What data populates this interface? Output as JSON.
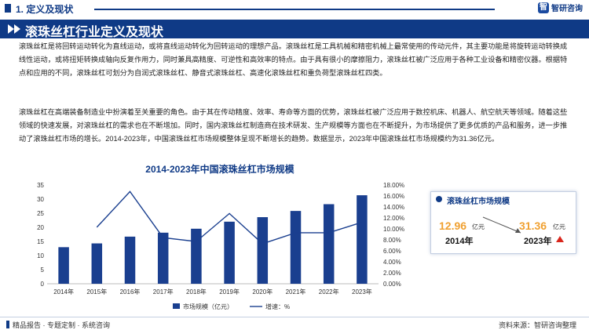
{
  "header": {
    "section_title": "1. 定义及现状",
    "brand": "智研咨询",
    "band_title": "滚珠丝杠行业定义及现状"
  },
  "paragraphs": {
    "p1": "滚珠丝杠是将回转运动转化为直线运动，或将直线运动转化为回转运动的理想产品。滚珠丝杠是工具机械和精密机械上最常使用的传动元件，其主要功能是将旋转运动转换成线性运动，或将扭矩转换成轴向反复作用力，同时兼具高精度、可逆性和高效率的特点。由于具有很小的摩擦阻力，滚珠丝杠被广泛应用于各种工业设备和精密仪器。根据特点和应用的不同，滚珠丝杠可划分为自润式滚珠丝杠、静音式滚珠丝杠、高速化滚珠丝杠和重负荷型滚珠丝杠四类。",
    "p2": "滚珠丝杠在高端装备制造业中扮演着至关重要的角色。由于其在传动精度、效率、寿命等方面的优势，滚珠丝杠被广泛应用于数控机床、机器人、航空航天等领域。随着这些领域的快速发展，对滚珠丝杠的需求也在不断增加。同时，国内滚珠丝杠制造商在技术研发、生产规模等方面也在不断提升，为市场提供了更多优质的产品和服务，进一步推动了滚珠丝杠市场的增长。2014-2023年，中国滚珠丝杠市场规模整体呈现不断增长的趋势。数据显示，2023年中国滚珠丝杠市场规模约为31.36亿元。"
  },
  "chart_data": {
    "type": "bar",
    "title": "2014-2023年中国滚珠丝杠市场规模",
    "categories": [
      "2014年",
      "2015年",
      "2016年",
      "2017年",
      "2018年",
      "2019年",
      "2020年",
      "2021年",
      "2022年",
      "2023年"
    ],
    "series": [
      {
        "name": "市场规模（亿元）",
        "type": "bar",
        "axis": "left",
        "values": [
          12.96,
          14.3,
          16.7,
          18.1,
          19.5,
          22.0,
          23.6,
          25.8,
          28.2,
          31.36
        ]
      },
      {
        "name": "增速：%",
        "type": "line",
        "axis": "right",
        "values": [
          null,
          10.3,
          16.8,
          8.4,
          7.7,
          12.8,
          7.3,
          9.3,
          9.3,
          11.2
        ]
      }
    ],
    "ylim_left": [
      0,
      35
    ],
    "yticks_left": [
      "0",
      "5",
      "10",
      "15",
      "20",
      "25",
      "30",
      "35"
    ],
    "ylim_right": [
      0,
      18
    ],
    "yticks_right": [
      "0.00%",
      "2.00%",
      "4.00%",
      "6.00%",
      "8.00%",
      "10.00%",
      "12.00%",
      "14.00%",
      "16.00%",
      "18.00%"
    ],
    "grid": false,
    "legend": "bottom",
    "colors": {
      "bar": "#1a3f8f",
      "line": "#1a3f8f"
    }
  },
  "panel": {
    "title": "滚珠丝杠市场规模",
    "start_value": "12.96",
    "start_unit": "亿元",
    "start_year": "2014年",
    "end_value": "31.36",
    "end_unit": "亿元",
    "end_year": "2023年"
  },
  "footer": {
    "left": "精品报告 · 专题定制 · 系统咨询",
    "right": "资料来源：智研咨询整理"
  }
}
